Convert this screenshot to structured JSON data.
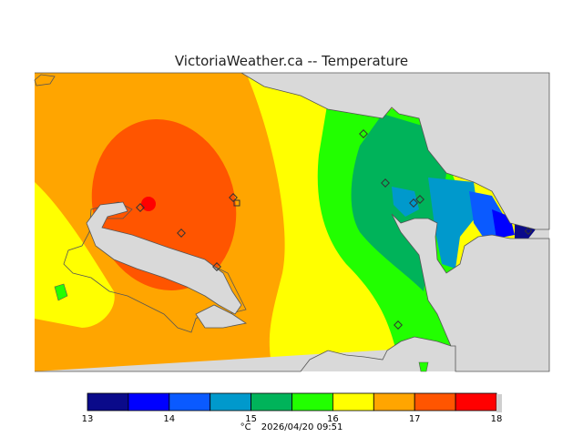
{
  "title": "VictoriaWeather.ca -- Temperature",
  "colors": {
    "background_outside": "#d9d9d9",
    "land_fill_note": "filled temperature contours"
  },
  "legend": {
    "bins": [
      {
        "from": 13.0,
        "to": 13.5,
        "color": "#0a0a8a"
      },
      {
        "from": 13.5,
        "to": 14.0,
        "color": "#0000ff"
      },
      {
        "from": 14.0,
        "to": 14.5,
        "color": "#0a5aff"
      },
      {
        "from": 14.5,
        "to": 15.0,
        "color": "#0099cc"
      },
      {
        "from": 15.0,
        "to": 15.5,
        "color": "#00b35a"
      },
      {
        "from": 15.5,
        "to": 16.0,
        "color": "#22ff00"
      },
      {
        "from": 16.0,
        "to": 16.5,
        "color": "#ffff00"
      },
      {
        "from": 16.5,
        "to": 17.0,
        "color": "#ffa500"
      },
      {
        "from": 17.0,
        "to": 17.5,
        "color": "#ff5500"
      },
      {
        "from": 17.5,
        "to": 18.0,
        "color": "#ff0000"
      }
    ],
    "tick_labels": [
      "13",
      "14",
      "15",
      "16",
      "17",
      "18"
    ]
  },
  "footer": {
    "unit": "°C",
    "timestamp": "2026/04/20 09:51"
  },
  "stations": {
    "count": 11,
    "shape": "diamond"
  }
}
